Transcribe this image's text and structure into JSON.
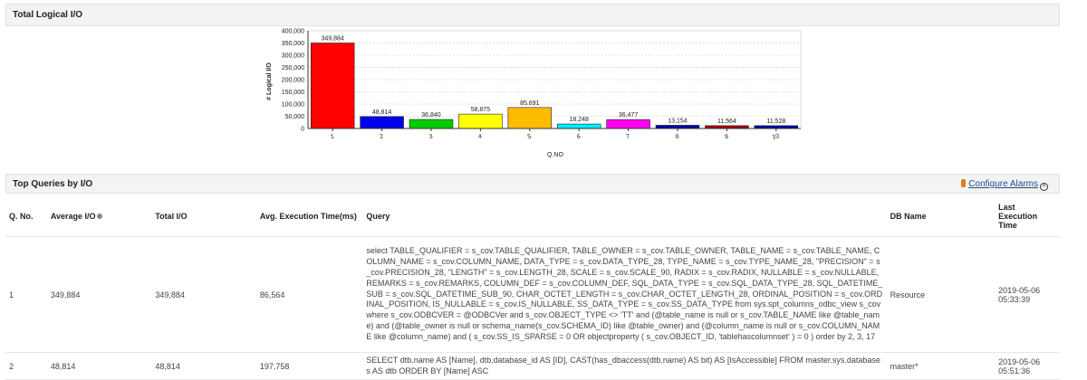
{
  "panel1": {
    "title": "Total Logical I/O"
  },
  "chart_data": {
    "type": "bar",
    "title": "Total Logical I/O",
    "categories": [
      "1",
      "2",
      "3",
      "4",
      "5",
      "6",
      "7",
      "8",
      "9",
      "10"
    ],
    "values": [
      349884,
      48814,
      36840,
      58875,
      85691,
      18248,
      36477,
      13154,
      11564,
      11528
    ],
    "labels": [
      "349,884",
      "48,814",
      "36,840",
      "58,875",
      "85,691",
      "18,248",
      "36,477",
      "13,154",
      "11,564",
      "11,528"
    ],
    "colors": [
      "#ff0000",
      "#0000ee",
      "#00cc00",
      "#ffff00",
      "#ffbb00",
      "#00eeff",
      "#ff00ee",
      "#0000aa",
      "#aa0000",
      "#0000aa"
    ],
    "xlabel": "Q.NO",
    "ylabel": "# Logical I/O",
    "ylim": [
      0,
      400000
    ],
    "yticks": [
      0,
      50000,
      100000,
      150000,
      200000,
      250000,
      300000,
      350000,
      400000
    ],
    "ytick_labels": [
      "0",
      "50,000",
      "100,000",
      "150,000",
      "200,000",
      "250,000",
      "300,000",
      "350,000",
      "400,000"
    ],
    "grid": true
  },
  "panel2": {
    "title": "Top Queries by I/O",
    "configure_alarms": "Configure Alarms"
  },
  "table": {
    "headers": {
      "qno": "Q. No.",
      "avg_io": "Average I/O",
      "total_io": "Total I/O",
      "avg_exec": "Avg. Execution Time(ms)",
      "query": "Query",
      "db_name": "DB Name",
      "last_exec": "Last Execution Time"
    },
    "rows": [
      {
        "qno": "1",
        "avg_io": "349,884",
        "total_io": "349,884",
        "avg_exec": "86,564",
        "query": "select TABLE_QUALIFIER = s_cov.TABLE_QUALIFIER, TABLE_OWNER = s_cov.TABLE_OWNER, TABLE_NAME = s_cov.TABLE_NAME, COLUMN_NAME = s_cov.COLUMN_NAME, DATA_TYPE = s_cov.DATA_TYPE_28, TYPE_NAME = s_cov.TYPE_NAME_28, \"PRECISION\" = s_cov.PRECISION_28, \"LENGTH\" = s_cov.LENGTH_28, SCALE = s_cov.SCALE_90, RADIX = s_cov.RADIX, NULLABLE = s_cov.NULLABLE, REMARKS = s_cov.REMARKS, COLUMN_DEF = s_cov.COLUMN_DEF, SQL_DATA_TYPE = s_cov.SQL_DATA_TYPE_28, SQL_DATETIME_SUB = s_cov.SQL_DATETIME_SUB_90, CHAR_OCTET_LENGTH = s_cov.CHAR_OCTET_LENGTH_28, ORDINAL_POSITION = s_cov.ORDINAL_POSITION, IS_NULLABLE = s_cov.IS_NULLABLE, SS_DATA_TYPE = s_cov.SS_DATA_TYPE from sys.spt_columns_odbc_view s_cov where s_cov.ODBCVER = @ODBCVer and s_cov.OBJECT_TYPE <> 'TT' and (@table_name is null or s_cov.TABLE_NAME like @table_name) and (@table_owner is null or schema_name(s_cov.SCHEMA_ID) like @table_owner) and (@column_name is null or s_cov.COLUMN_NAME like @column_name) and ( s_cov.SS_IS_SPARSE = 0 OR objectproperty ( s_cov.OBJECT_ID, 'tablehascolumnset' ) = 0 ) order by 2, 3, 17",
        "db_name": "Resource",
        "last_exec": "2019-05-06 05:33:39"
      },
      {
        "qno": "2",
        "avg_io": "48,814",
        "total_io": "48,814",
        "avg_exec": "197,758",
        "query": "SELECT dtb.name AS [Name], dtb.database_id AS [ID], CAST(has_dbaccess(dtb.name) AS bit) AS [IsAccessible] FROM master.sys.databases AS dtb ORDER BY [Name] ASC",
        "db_name": "master*",
        "last_exec": "2019-05-06 05:51:36"
      }
    ]
  }
}
